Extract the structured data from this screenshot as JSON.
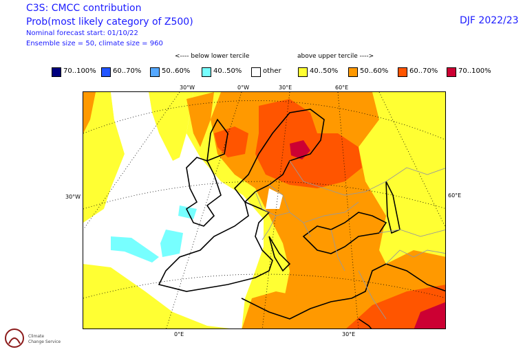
{
  "header": {
    "title1": "C3S: CMCC contribution",
    "title2": "Prob(most likely category of Z500)",
    "meta1": "Nominal forecast start: 01/10/22",
    "meta2": "Ensemble size = 50, climate size = 960",
    "season": "DJF 2022/23"
  },
  "legend": {
    "below_note": "<---- below lower tercile",
    "above_note": "above upper tercile ---->",
    "items": [
      {
        "label": "70..100%",
        "color": "#00007f"
      },
      {
        "label": "60..70%",
        "color": "#2255ff"
      },
      {
        "label": "50..60%",
        "color": "#55a8ff"
      },
      {
        "label": "40..50%",
        "color": "#77ffff"
      },
      {
        "label": "other",
        "color": "#ffffff"
      },
      {
        "label": "40..50%",
        "color": "#ffff33"
      },
      {
        "label": "50..60%",
        "color": "#ff9900"
      },
      {
        "label": "60..70%",
        "color": "#ff5500"
      },
      {
        "label": "70..100%",
        "color": "#cc0033"
      }
    ]
  },
  "map_labels": {
    "top": [
      "30°W",
      "0°W",
      "30°E",
      "60°E"
    ],
    "bottom": [
      "0°E",
      "30°E"
    ],
    "left": "30°W",
    "right": "60°E"
  },
  "logo": {
    "line1": "Climate",
    "line2": "Change Service"
  }
}
